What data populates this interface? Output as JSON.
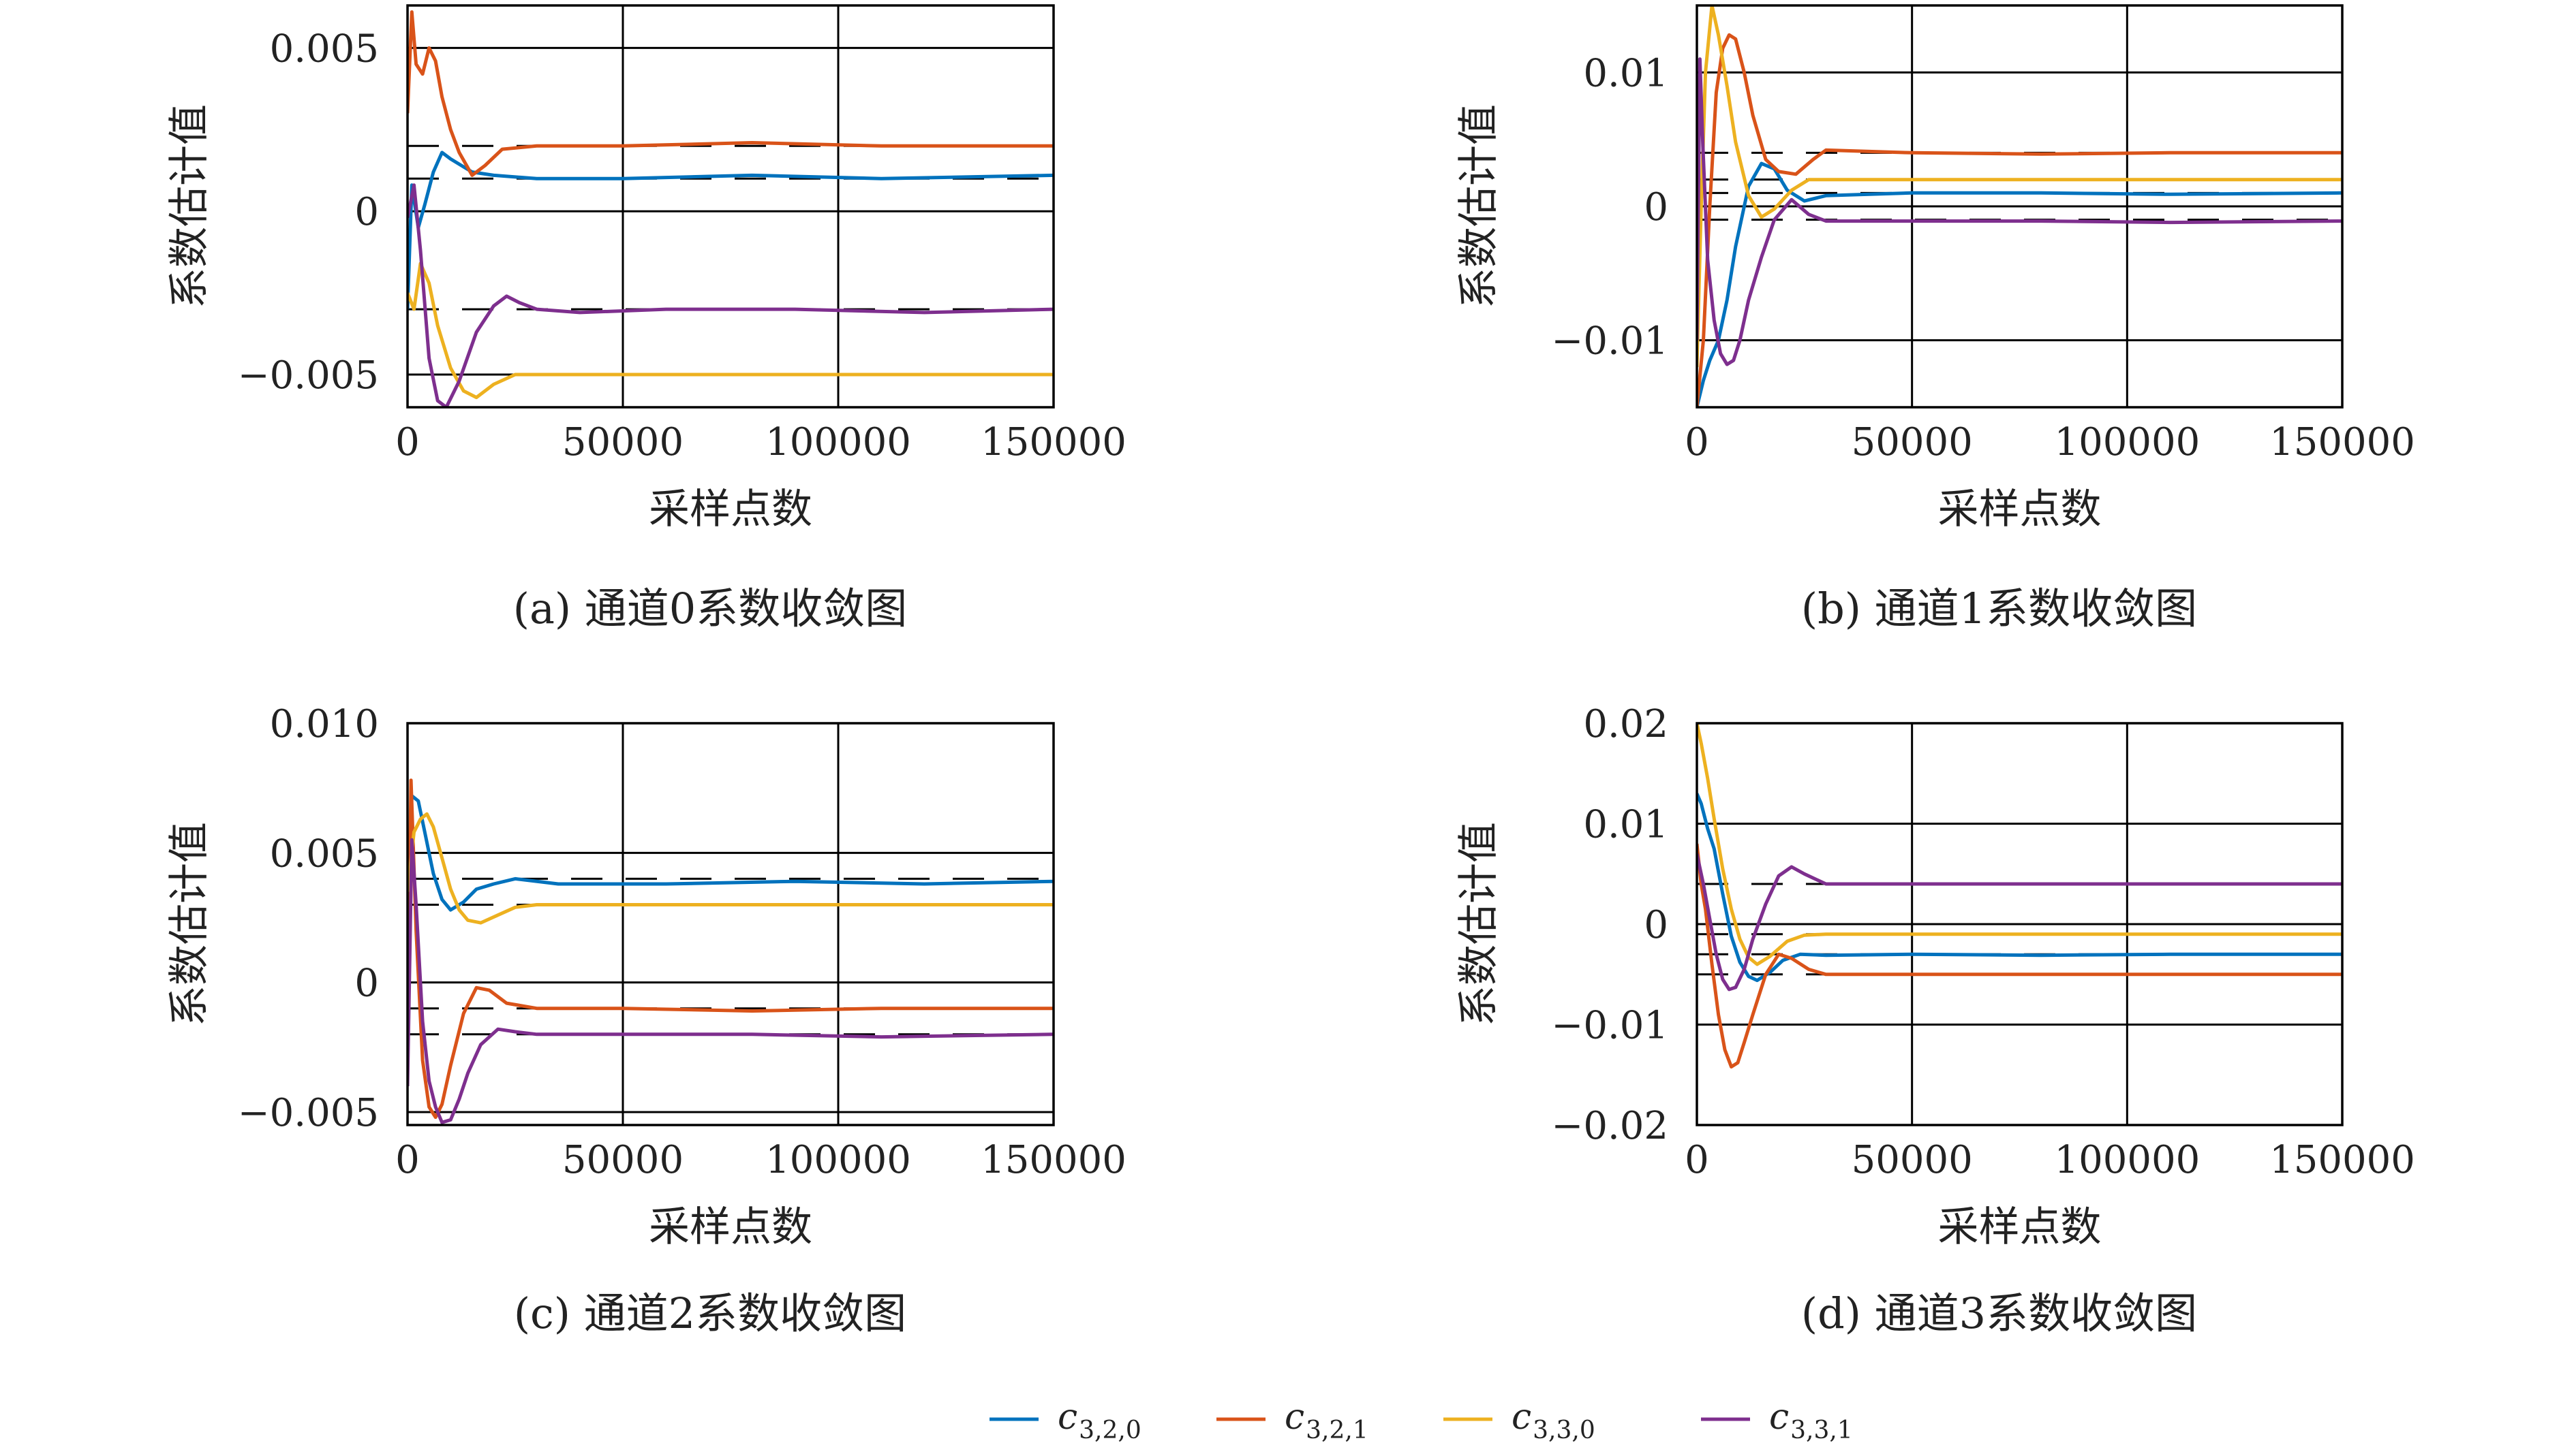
{
  "chart_data": [
    {
      "type": "line",
      "caption": "(a) 通道0系数收敛图",
      "xlabel": "采样点数",
      "ylabel": "系数估计值",
      "xlim": [
        0,
        150000
      ],
      "ylim": [
        -0.006,
        0.0063
      ],
      "xticks": [
        0,
        50000,
        100000,
        150000
      ],
      "xtick_labels": [
        "0",
        "50000",
        "100000",
        "150000"
      ],
      "yticks": [
        -0.005,
        0,
        0.005
      ],
      "ytick_labels": [
        "−0.005",
        "0",
        "0.005"
      ],
      "grid": true,
      "reference_values": [
        0.001,
        0.002,
        -0.003,
        -0.005
      ],
      "series": [
        {
          "name_key": "c320",
          "x": [
            0,
            1000,
            2500,
            4000,
            6000,
            8000,
            10000,
            15000,
            20000,
            30000,
            50000,
            80000,
            110000,
            150000
          ],
          "y": [
            -0.003,
            0.0008,
            -0.0005,
            0.0002,
            0.0012,
            0.0018,
            0.0016,
            0.0012,
            0.0011,
            0.001,
            0.001,
            0.0011,
            0.001,
            0.0011
          ]
        },
        {
          "name_key": "c321",
          "x": [
            0,
            1000,
            2000,
            3500,
            5000,
            6500,
            8000,
            10000,
            12000,
            15000,
            18000,
            22000,
            30000,
            50000,
            80000,
            110000,
            150000
          ],
          "y": [
            0.003,
            0.0061,
            0.0045,
            0.0042,
            0.005,
            0.0046,
            0.0035,
            0.0025,
            0.0018,
            0.0011,
            0.0014,
            0.0019,
            0.002,
            0.002,
            0.0021,
            0.002,
            0.002
          ]
        },
        {
          "name_key": "c330",
          "x": [
            0,
            1500,
            3000,
            5000,
            7000,
            10000,
            13000,
            16000,
            20000,
            25000,
            30000,
            50000,
            80000,
            110000,
            150000
          ],
          "y": [
            -0.0025,
            -0.003,
            -0.0016,
            -0.0022,
            -0.0035,
            -0.0048,
            -0.0055,
            -0.0057,
            -0.0053,
            -0.005,
            -0.005,
            -0.005,
            -0.005,
            -0.005,
            -0.005
          ]
        },
        {
          "name_key": "c331",
          "x": [
            0,
            1500,
            3000,
            5000,
            7000,
            9000,
            12000,
            16000,
            20000,
            23000,
            26000,
            30000,
            40000,
            60000,
            90000,
            120000,
            150000
          ],
          "y": [
            -0.0002,
            0.0008,
            -0.0012,
            -0.0045,
            -0.0058,
            -0.006,
            -0.0052,
            -0.0037,
            -0.0029,
            -0.0026,
            -0.0028,
            -0.003,
            -0.0031,
            -0.003,
            -0.003,
            -0.0031,
            -0.003
          ]
        }
      ]
    },
    {
      "type": "line",
      "caption": "(b) 通道1系数收敛图",
      "xlabel": "采样点数",
      "ylabel": "系数估计值",
      "xlim": [
        0,
        150000
      ],
      "ylim": [
        -0.015,
        0.015
      ],
      "xticks": [
        0,
        50000,
        100000,
        150000
      ],
      "xtick_labels": [
        "0",
        "50000",
        "100000",
        "150000"
      ],
      "yticks": [
        -0.01,
        0,
        0.01
      ],
      "ytick_labels": [
        "−0.01",
        "0",
        "0.01"
      ],
      "grid": true,
      "reference_values": [
        0.004,
        0.002,
        0.001,
        -0.001
      ],
      "series": [
        {
          "name_key": "c320",
          "x": [
            0,
            1500,
            3000,
            5000,
            7000,
            9000,
            12000,
            15000,
            18000,
            21000,
            25000,
            30000,
            50000,
            80000,
            110000,
            150000
          ],
          "y": [
            -0.015,
            -0.013,
            -0.0115,
            -0.01,
            -0.007,
            -0.003,
            0.0015,
            0.0032,
            0.0028,
            0.0012,
            0.0004,
            0.0008,
            0.001,
            0.001,
            0.0009,
            0.001
          ]
        },
        {
          "name_key": "c321",
          "x": [
            0,
            1500,
            3000,
            4500,
            6000,
            7500,
            9000,
            11000,
            13000,
            16000,
            19000,
            23000,
            27000,
            30000,
            50000,
            80000,
            110000,
            150000
          ],
          "y": [
            -0.015,
            -0.01,
            0.0,
            0.0085,
            0.0118,
            0.0128,
            0.0125,
            0.01,
            0.0068,
            0.0035,
            0.0026,
            0.0024,
            0.0035,
            0.0042,
            0.004,
            0.0039,
            0.004,
            0.004
          ]
        },
        {
          "name_key": "c330",
          "x": [
            0,
            1000,
            2000,
            3500,
            5000,
            7000,
            9000,
            12000,
            15000,
            18000,
            22000,
            26000,
            30000,
            50000,
            80000,
            110000,
            150000
          ],
          "y": [
            -0.012,
            0.0,
            0.01,
            0.015,
            0.0128,
            0.009,
            0.0048,
            0.0008,
            -0.0008,
            -0.0002,
            0.0012,
            0.002,
            0.002,
            0.002,
            0.002,
            0.002,
            0.002
          ]
        },
        {
          "name_key": "c331",
          "x": [
            0,
            700,
            1400,
            2500,
            4000,
            5500,
            7000,
            8500,
            10000,
            12000,
            15000,
            18000,
            22000,
            26000,
            30000,
            50000,
            80000,
            110000,
            150000
          ],
          "y": [
            -0.01,
            0.011,
            0.0045,
            -0.004,
            -0.0085,
            -0.011,
            -0.0118,
            -0.0115,
            -0.01,
            -0.007,
            -0.0038,
            -0.001,
            0.0005,
            -0.0006,
            -0.0011,
            -0.0011,
            -0.0011,
            -0.0012,
            -0.0011
          ]
        }
      ]
    },
    {
      "type": "line",
      "caption": "(c) 通道2系数收敛图",
      "xlabel": "采样点数",
      "ylabel": "系数估计值",
      "xlim": [
        0,
        150000
      ],
      "ylim": [
        -0.0055,
        0.01
      ],
      "xticks": [
        0,
        50000,
        100000,
        150000
      ],
      "xtick_labels": [
        "0",
        "50000",
        "100000",
        "150000"
      ],
      "yticks": [
        -0.005,
        0,
        0.005,
        0.01
      ],
      "ytick_labels": [
        "−0.005",
        "0",
        "0.005",
        "0.010"
      ],
      "grid": true,
      "reference_values": [
        0.004,
        0.003,
        -0.001,
        -0.002
      ],
      "series": [
        {
          "name_key": "c320",
          "x": [
            0,
            1000,
            2500,
            4000,
            6000,
            8000,
            10000,
            13000,
            16000,
            20000,
            25000,
            35000,
            60000,
            90000,
            120000,
            150000
          ],
          "y": [
            0.002,
            0.0072,
            0.007,
            0.0058,
            0.0042,
            0.0032,
            0.0028,
            0.0031,
            0.0036,
            0.0038,
            0.004,
            0.0038,
            0.0038,
            0.0039,
            0.0038,
            0.0039
          ]
        },
        {
          "name_key": "c321",
          "x": [
            0,
            800,
            2000,
            3500,
            5000,
            6500,
            8000,
            10000,
            13000,
            16000,
            19000,
            23000,
            30000,
            50000,
            80000,
            110000,
            150000
          ],
          "y": [
            -0.002,
            0.0078,
            0.002,
            -0.003,
            -0.0048,
            -0.0052,
            -0.0047,
            -0.0032,
            -0.0012,
            -0.0002,
            -0.0003,
            -0.0008,
            -0.001,
            -0.001,
            -0.0011,
            -0.001,
            -0.001
          ]
        },
        {
          "name_key": "c330",
          "x": [
            0,
            1500,
            3000,
            4500,
            6000,
            8000,
            10000,
            12000,
            14000,
            17000,
            21000,
            25000,
            30000,
            50000,
            80000,
            110000,
            150000
          ],
          "y": [
            0.0035,
            0.0058,
            0.0063,
            0.0065,
            0.006,
            0.0048,
            0.0036,
            0.0028,
            0.0024,
            0.0023,
            0.0026,
            0.0029,
            0.003,
            0.003,
            0.003,
            0.003,
            0.003
          ]
        },
        {
          "name_key": "c331",
          "x": [
            0,
            1000,
            2000,
            3500,
            5000,
            6500,
            8000,
            10000,
            12000,
            14000,
            17000,
            21000,
            25000,
            30000,
            50000,
            80000,
            110000,
            150000
          ],
          "y": [
            -0.004,
            0.0055,
            0.003,
            -0.0015,
            -0.0038,
            -0.0048,
            -0.0054,
            -0.0053,
            -0.0045,
            -0.0035,
            -0.0024,
            -0.0018,
            -0.0019,
            -0.002,
            -0.002,
            -0.002,
            -0.0021,
            -0.002
          ]
        }
      ]
    },
    {
      "type": "line",
      "caption": "(d) 通道3系数收敛图",
      "xlabel": "采样点数",
      "ylabel": "系数估计值",
      "xlim": [
        0,
        150000
      ],
      "ylim": [
        -0.02,
        0.02
      ],
      "xticks": [
        0,
        50000,
        100000,
        150000
      ],
      "xtick_labels": [
        "0",
        "50000",
        "100000",
        "150000"
      ],
      "yticks": [
        -0.02,
        -0.01,
        0,
        0.01,
        0.02
      ],
      "ytick_labels": [
        "−0.02",
        "−0.01",
        "0",
        "0.01",
        "0.02"
      ],
      "grid": true,
      "reference_values": [
        0.004,
        -0.001,
        -0.003,
        -0.005
      ],
      "series": [
        {
          "name_key": "c320",
          "x": [
            0,
            1000,
            2500,
            4000,
            6000,
            8000,
            10000,
            12000,
            14000,
            17000,
            20000,
            24000,
            30000,
            50000,
            80000,
            110000,
            150000
          ],
          "y": [
            0.013,
            0.012,
            0.0095,
            0.0075,
            0.003,
            -0.0012,
            -0.0038,
            -0.0052,
            -0.0056,
            -0.0048,
            -0.0036,
            -0.003,
            -0.0031,
            -0.003,
            -0.0031,
            -0.003,
            -0.003
          ]
        },
        {
          "name_key": "c321",
          "x": [
            0,
            1000,
            2000,
            3500,
            5000,
            6500,
            8000,
            9500,
            11000,
            13000,
            16000,
            19000,
            22000,
            26000,
            30000,
            50000,
            80000,
            110000,
            150000
          ],
          "y": [
            0.008,
            0.004,
            0.0015,
            -0.004,
            -0.009,
            -0.0125,
            -0.0142,
            -0.0138,
            -0.0118,
            -0.009,
            -0.005,
            -0.003,
            -0.0034,
            -0.0045,
            -0.005,
            -0.005,
            -0.005,
            -0.005,
            -0.005
          ]
        },
        {
          "name_key": "c330",
          "x": [
            0,
            1000,
            2500,
            4000,
            6000,
            8000,
            10000,
            12000,
            14000,
            17000,
            21000,
            25000,
            30000,
            50000,
            80000,
            110000,
            150000
          ],
          "y": [
            0.02,
            0.018,
            0.0145,
            0.0105,
            0.0055,
            0.0015,
            -0.0015,
            -0.0033,
            -0.004,
            -0.0032,
            -0.0017,
            -0.0011,
            -0.001,
            -0.001,
            -0.001,
            -0.001,
            -0.001
          ]
        },
        {
          "name_key": "c331",
          "x": [
            0,
            1500,
            3000,
            4500,
            6000,
            7500,
            9000,
            11000,
            13000,
            16000,
            19000,
            22000,
            25000,
            30000,
            50000,
            80000,
            110000,
            150000
          ],
          "y": [
            0.007,
            0.004,
            0.0005,
            -0.003,
            -0.0055,
            -0.0065,
            -0.0063,
            -0.0045,
            -0.0015,
            0.002,
            0.0048,
            0.0057,
            0.005,
            0.004,
            0.004,
            0.004,
            0.004,
            0.004
          ]
        }
      ]
    }
  ],
  "legend": [
    {
      "key": "c320",
      "base": "c",
      "sub": "3,2,0",
      "color": "#0072BD"
    },
    {
      "key": "c321",
      "base": "c",
      "sub": "3,2,1",
      "color": "#D95319"
    },
    {
      "key": "c330",
      "base": "c",
      "sub": "3,3,0",
      "color": "#EDB120"
    },
    {
      "key": "c331",
      "base": "c",
      "sub": "3,3,1",
      "color": "#7E2F8E"
    }
  ],
  "reference_color": "#000000",
  "grid_color": "#000000"
}
